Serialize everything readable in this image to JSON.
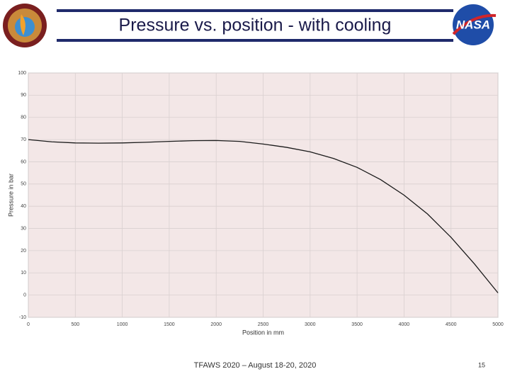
{
  "header": {
    "title": "Pressure vs. position - with cooling",
    "logo_text": "NASA"
  },
  "chart_data": {
    "type": "line",
    "xlabel": "Position in mm",
    "ylabel": "Pressure in bar",
    "x": [
      0,
      250,
      500,
      750,
      1000,
      1250,
      1500,
      1750,
      2000,
      2250,
      2500,
      2750,
      3000,
      3250,
      3500,
      3750,
      4000,
      4250,
      4500,
      4750,
      5000
    ],
    "series": [
      {
        "name": "Pressure",
        "color": "#1a1a1a",
        "values": [
          70,
          69,
          68.5,
          68.4,
          68.5,
          68.8,
          69.2,
          69.5,
          69.6,
          69.2,
          68,
          66.5,
          64.5,
          61.5,
          57.5,
          52,
          45,
          36.5,
          26,
          14,
          1
        ]
      }
    ],
    "xlim": [
      0,
      5000
    ],
    "xticks": [
      0,
      500,
      1000,
      1500,
      2000,
      2500,
      3000,
      3500,
      4000,
      4500,
      5000
    ],
    "ylim": [
      -10,
      100
    ],
    "yticks": [
      -10,
      0,
      10,
      20,
      30,
      40,
      50,
      60,
      70,
      80,
      90,
      100
    ],
    "grid": true
  },
  "footer": {
    "text": "TFAWS 2020 – August 18-20, 2020",
    "page": "15"
  }
}
